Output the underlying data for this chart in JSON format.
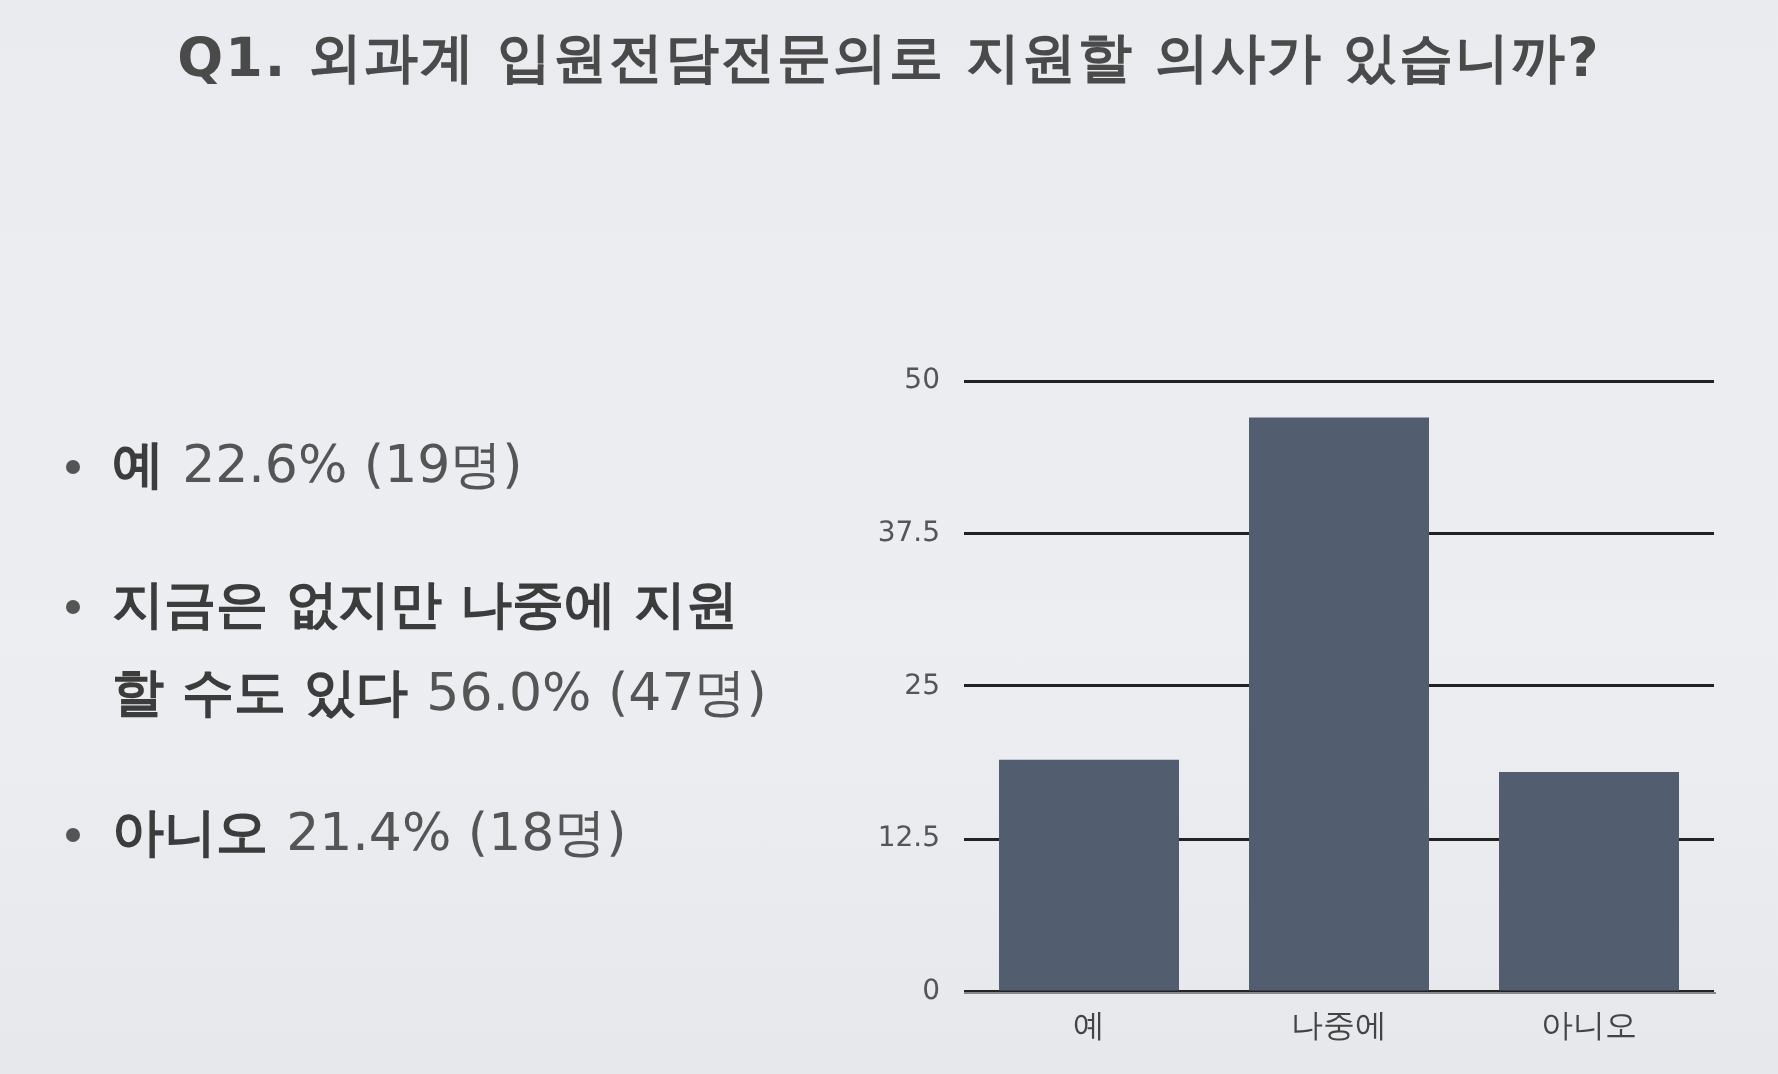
{
  "chart_data": {
    "type": "bar",
    "title": "Q1. 외과계 입원전담전문의로 지원할 의사가 있습니까?",
    "categories": [
      "예",
      "나중에",
      "아니오"
    ],
    "values": [
      19,
      47,
      18
    ],
    "color": "#525d70",
    "ylim": [
      0,
      50
    ],
    "yticks": [
      0,
      12.5,
      25,
      37.5,
      50
    ],
    "grid": "y",
    "annotations": [
      "예 22.6% (19명)",
      "지금은 없지만 나중에 지원할 수도 있다 56.0% (47명)",
      "아니오 21.4% (18명)"
    ]
  }
}
